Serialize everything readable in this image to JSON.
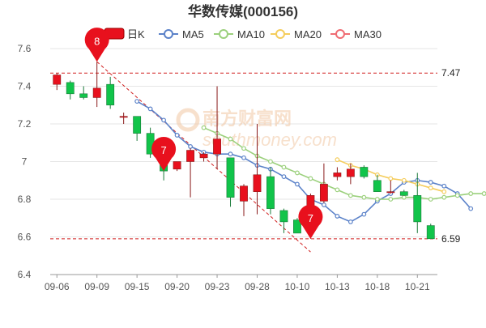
{
  "colors": {
    "up": "#e8101d",
    "down": "#11c44a",
    "ma5": "#5b82c9",
    "ma10": "#9bd07c",
    "ma20": "#f5cd5c",
    "ma30": "#ef6c73",
    "grid": "#e6e6e6",
    "ref_line": "#d12020",
    "title": "#333333",
    "axis_text": "#555555",
    "marker": "#e8101d",
    "watermark": "#f1c7a3"
  },
  "watermark": {
    "line1": "南方财富网",
    "line2": "southmoney.com"
  },
  "chart_data": {
    "type": "candlestick",
    "title": "华数传媒(000156)",
    "legend": {
      "placement": "top",
      "items": [
        {
          "key": "k",
          "label": "日K",
          "icon": "candle-icon",
          "color_key": "up"
        },
        {
          "key": "ma5",
          "label": "MA5",
          "icon": "line-marker-icon",
          "color_key": "ma5"
        },
        {
          "key": "ma10",
          "label": "MA10",
          "icon": "line-marker-icon",
          "color_key": "ma10"
        },
        {
          "key": "ma20",
          "label": "MA20",
          "icon": "line-marker-icon",
          "color_key": "ma20"
        },
        {
          "key": "ma30",
          "label": "MA30",
          "icon": "line-marker-icon",
          "color_key": "ma30"
        }
      ]
    },
    "ylim": [
      6.4,
      7.6
    ],
    "yticks": [
      "6.4",
      "6.6",
      "6.8",
      "7",
      "7.2",
      "7.4",
      "7.6"
    ],
    "grid": true,
    "x_tick_labels": [
      {
        "index": 0,
        "label": "09-06"
      },
      {
        "index": 3,
        "label": "09-09"
      },
      {
        "index": 6,
        "label": "09-15"
      },
      {
        "index": 9,
        "label": "09-20"
      },
      {
        "index": 12,
        "label": "09-23"
      },
      {
        "index": 15,
        "label": "09-28"
      },
      {
        "index": 18,
        "label": "10-10"
      },
      {
        "index": 21,
        "label": "10-13"
      },
      {
        "index": 24,
        "label": "10-18"
      },
      {
        "index": 27,
        "label": "10-21"
      }
    ],
    "candles": [
      {
        "o": 7.41,
        "h": 7.47,
        "l": 7.38,
        "c": 7.46
      },
      {
        "o": 7.42,
        "h": 7.43,
        "l": 7.33,
        "c": 7.36
      },
      {
        "o": 7.36,
        "h": 7.4,
        "l": 7.33,
        "c": 7.34
      },
      {
        "o": 7.34,
        "h": 7.53,
        "l": 7.29,
        "c": 7.39
      },
      {
        "o": 7.41,
        "h": 7.45,
        "l": 7.28,
        "c": 7.3
      },
      {
        "o": 7.24,
        "h": 7.26,
        "l": 7.2,
        "c": 7.24
      },
      {
        "o": 7.24,
        "h": 7.24,
        "l": 7.11,
        "c": 7.15
      },
      {
        "o": 7.15,
        "h": 7.18,
        "l": 7.02,
        "c": 7.04
      },
      {
        "o": 7.04,
        "h": 7.11,
        "l": 6.9,
        "c": 6.95
      },
      {
        "o": 6.96,
        "h": 7.0,
        "l": 6.95,
        "c": 7.0
      },
      {
        "o": 7.0,
        "h": 7.07,
        "l": 6.81,
        "c": 7.06
      },
      {
        "o": 7.02,
        "h": 7.05,
        "l": 7.0,
        "c": 7.04
      },
      {
        "o": 7.04,
        "h": 7.4,
        "l": 6.96,
        "c": 7.12
      },
      {
        "o": 7.02,
        "h": 7.02,
        "l": 6.76,
        "c": 6.81
      },
      {
        "o": 6.79,
        "h": 6.88,
        "l": 6.71,
        "c": 6.87
      },
      {
        "o": 6.84,
        "h": 7.2,
        "l": 6.72,
        "c": 6.93
      },
      {
        "o": 6.92,
        "h": 6.97,
        "l": 6.72,
        "c": 6.75
      },
      {
        "o": 6.74,
        "h": 6.75,
        "l": 6.62,
        "c": 6.68
      },
      {
        "o": 6.69,
        "h": 6.7,
        "l": 6.62,
        "c": 6.62
      },
      {
        "o": 6.68,
        "h": 6.83,
        "l": 6.59,
        "c": 6.82
      },
      {
        "o": 6.79,
        "h": 6.99,
        "l": 6.78,
        "c": 6.88
      },
      {
        "o": 6.92,
        "h": 6.97,
        "l": 6.9,
        "c": 6.94
      },
      {
        "o": 6.92,
        "h": 6.99,
        "l": 6.88,
        "c": 6.96
      },
      {
        "o": 6.97,
        "h": 6.98,
        "l": 6.91,
        "c": 6.92
      },
      {
        "o": 6.9,
        "h": 6.93,
        "l": 6.84,
        "c": 6.84
      },
      {
        "o": 6.84,
        "h": 6.9,
        "l": 6.83,
        "c": 6.84
      },
      {
        "o": 6.84,
        "h": 6.85,
        "l": 6.82,
        "c": 6.82
      },
      {
        "o": 6.82,
        "h": 6.94,
        "l": 6.62,
        "c": 6.68
      },
      {
        "o": 6.66,
        "h": 6.67,
        "l": 6.59,
        "c": 6.59
      }
    ],
    "ma_series": [
      {
        "key": "ma5",
        "start": 6,
        "values": [
          7.32,
          7.28,
          7.22,
          7.14,
          7.08,
          7.05,
          7.04,
          7.04,
          7.02,
          6.98,
          6.96,
          6.92,
          6.88,
          6.8,
          6.77,
          6.71,
          6.68,
          6.72,
          6.79,
          6.83,
          6.89,
          6.9,
          6.89,
          6.87,
          6.83,
          6.75
        ]
      },
      {
        "key": "ma10",
        "start": 11,
        "values": [
          7.18,
          7.15,
          7.12,
          7.07,
          7.03,
          7.0,
          6.97,
          6.94,
          6.91,
          6.88,
          6.85,
          6.82,
          6.81,
          6.8,
          6.8,
          6.81,
          6.81,
          6.8,
          6.81,
          6.82,
          6.83,
          6.83
        ]
      },
      {
        "key": "ma20",
        "start": 21,
        "values": [
          7.01,
          6.98,
          6.96,
          6.93,
          6.91,
          6.9,
          6.88,
          6.86,
          6.84
        ]
      },
      {
        "key": "ma30",
        "start": null,
        "values": []
      }
    ],
    "trend_lines": [
      {
        "from": {
          "index": 3,
          "value": 7.53
        },
        "to": {
          "index": 19,
          "value": 6.52
        }
      }
    ],
    "ref_lines": [
      {
        "value": 7.47,
        "label": "7.47"
      },
      {
        "value": 6.59,
        "label": "6.59"
      }
    ],
    "markers": [
      {
        "index": 3,
        "value": 7.53,
        "label": "8"
      },
      {
        "index": 8,
        "value": 6.95,
        "label": "7"
      },
      {
        "index": 19,
        "value": 6.59,
        "label": "7"
      }
    ]
  }
}
